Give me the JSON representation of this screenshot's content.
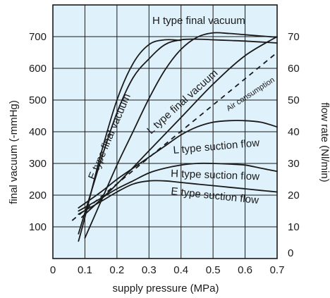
{
  "chart_data": {
    "type": "line",
    "title": "",
    "xlabel": "supply pressure (MPa)",
    "ylabel_left": "final vacuum (-mmHg)",
    "ylabel_right": "flow rate (Nl/min)",
    "xlim": [
      0,
      0.7
    ],
    "ylim_left": [
      0,
      800
    ],
    "ylim_right": [
      0,
      80
    ],
    "grid": true,
    "background_color": "#dff1fb",
    "x_ticks": [
      "0",
      "0.1",
      "0.2",
      "0.3",
      "0.4",
      "0.5",
      "0.6",
      "0.7"
    ],
    "y_ticks_left": [
      "100",
      "200",
      "300",
      "400",
      "500",
      "600",
      "700"
    ],
    "y_ticks_right": [
      "0",
      "10",
      "20",
      "30",
      "40",
      "50",
      "60",
      "70"
    ],
    "series": [
      {
        "name": "H type final vacuum",
        "axis": "left",
        "style": "solid",
        "x": [
          0.08,
          0.15,
          0.2,
          0.25,
          0.3,
          0.35,
          0.4,
          0.45,
          0.5,
          0.55,
          0.6,
          0.65,
          0.7
        ],
        "y": [
          78,
          310,
          460,
          570,
          630,
          675,
          690,
          692,
          690,
          688,
          686,
          683,
          680
        ]
      },
      {
        "name": "E type final vacuum",
        "axis": "left",
        "style": "solid",
        "x": [
          0.08,
          0.1,
          0.15,
          0.2,
          0.25,
          0.3,
          0.35,
          0.4
        ],
        "y": [
          55,
          130,
          330,
          500,
          615,
          675,
          690,
          688
        ]
      },
      {
        "name": "L type final vacuum",
        "axis": "left",
        "style": "solid",
        "x": [
          0.1,
          0.15,
          0.2,
          0.25,
          0.3,
          0.35,
          0.4,
          0.45,
          0.5,
          0.55,
          0.6,
          0.65,
          0.7
        ],
        "y": [
          65,
          180,
          295,
          400,
          505,
          595,
          660,
          698,
          712,
          710,
          706,
          702,
          698
        ]
      },
      {
        "name": "Air consumption",
        "axis": "right",
        "style": "dashed",
        "x": [
          0.06,
          0.7
        ],
        "y": [
          12,
          65
        ]
      },
      {
        "name": "",
        "axis": "right",
        "style": "solid",
        "x": [
          0.09,
          0.2,
          0.3,
          0.4,
          0.5,
          0.6,
          0.7
        ],
        "y": [
          13,
          23.5,
          34,
          44.5,
          55,
          64,
          70
        ]
      },
      {
        "name": "L type suction flow",
        "axis": "right",
        "style": "solid",
        "x": [
          0.08,
          0.15,
          0.2,
          0.25,
          0.3,
          0.35,
          0.4,
          0.45,
          0.5,
          0.55,
          0.6,
          0.65,
          0.7
        ],
        "y": [
          16,
          21,
          25,
          28.5,
          32,
          35.5,
          39,
          41.5,
          43,
          43.5,
          43.5,
          43,
          41.5
        ]
      },
      {
        "name": "H type suction flow",
        "axis": "right",
        "style": "solid",
        "x": [
          0.08,
          0.15,
          0.2,
          0.25,
          0.3,
          0.35,
          0.4,
          0.45,
          0.5,
          0.55,
          0.6,
          0.65,
          0.7
        ],
        "y": [
          15,
          19,
          22,
          24.5,
          27,
          28.5,
          29.5,
          30,
          30,
          29.8,
          29.5,
          28.5,
          27.5
        ]
      },
      {
        "name": "E type suction flow",
        "axis": "right",
        "style": "solid",
        "x": [
          0.08,
          0.15,
          0.2,
          0.25,
          0.3,
          0.35,
          0.4,
          0.45,
          0.5,
          0.55,
          0.6,
          0.65,
          0.7
        ],
        "y": [
          14,
          18,
          21,
          23.5,
          24.5,
          24.5,
          24,
          23.5,
          23,
          22.5,
          22,
          21.5,
          21
        ]
      }
    ],
    "labels": {
      "h_final": "H type final vacuum",
      "l_final": "L type final vacuum",
      "e_final": "E type final vacuum",
      "air": "Air consumption",
      "l_flow": "L type suction flow",
      "h_flow": "H type suction flow",
      "e_flow": "E type suction flow"
    }
  }
}
